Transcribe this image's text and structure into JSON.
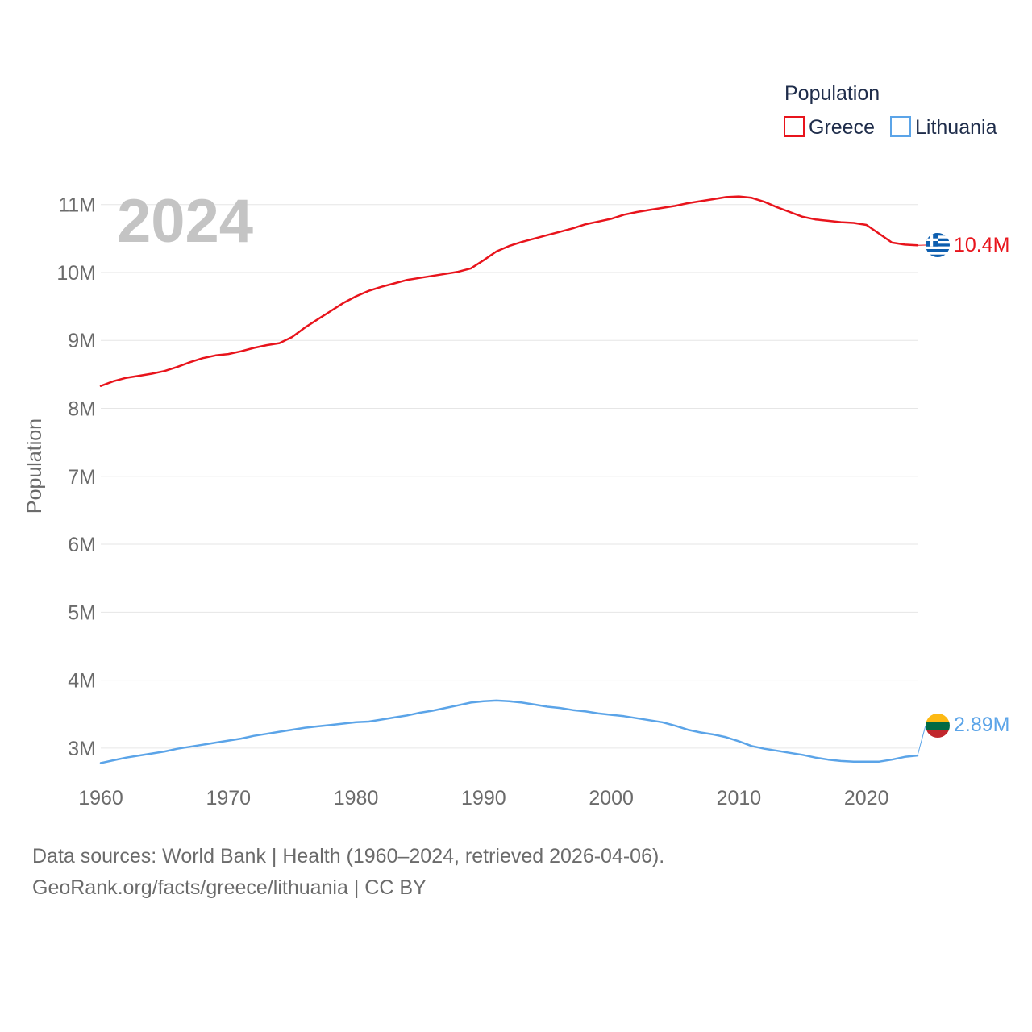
{
  "chart_data": {
    "type": "line",
    "year_label": "2024",
    "ylabel": "Population",
    "xlabel": "",
    "xlim": [
      1960,
      2024
    ],
    "ylim": [
      2500000,
      11400000
    ],
    "y_ticks": [
      3000000,
      4000000,
      5000000,
      6000000,
      7000000,
      8000000,
      9000000,
      10000000,
      11000000
    ],
    "y_tick_labels": [
      "3M",
      "4M",
      "5M",
      "6M",
      "7M",
      "8M",
      "9M",
      "10M",
      "11M"
    ],
    "x_ticks": [
      1960,
      1970,
      1980,
      1990,
      2000,
      2010,
      2020
    ],
    "x_tick_labels": [
      "1960",
      "1970",
      "1980",
      "1990",
      "2000",
      "2010",
      "2020"
    ],
    "legend": {
      "title": "Population",
      "position": "top-right"
    },
    "x": [
      1960,
      1961,
      1962,
      1963,
      1964,
      1965,
      1966,
      1967,
      1968,
      1969,
      1970,
      1971,
      1972,
      1973,
      1974,
      1975,
      1976,
      1977,
      1978,
      1979,
      1980,
      1981,
      1982,
      1983,
      1984,
      1985,
      1986,
      1987,
      1988,
      1989,
      1990,
      1991,
      1992,
      1993,
      1994,
      1995,
      1996,
      1997,
      1998,
      1999,
      2000,
      2001,
      2002,
      2003,
      2004,
      2005,
      2006,
      2007,
      2008,
      2009,
      2010,
      2011,
      2012,
      2013,
      2014,
      2015,
      2016,
      2017,
      2018,
      2019,
      2020,
      2021,
      2022,
      2023,
      2024
    ],
    "series": [
      {
        "name": "Greece",
        "color": "#e8141c",
        "flag": "greece-flag-icon",
        "end_label": "10.4M",
        "values": [
          8330000,
          8400000,
          8450000,
          8480000,
          8510000,
          8550000,
          8610000,
          8680000,
          8740000,
          8780000,
          8800000,
          8840000,
          8890000,
          8930000,
          8960000,
          9050000,
          9190000,
          9310000,
          9430000,
          9550000,
          9650000,
          9730000,
          9790000,
          9840000,
          9890000,
          9920000,
          9950000,
          9980000,
          10010000,
          10060000,
          10180000,
          10310000,
          10390000,
          10450000,
          10500000,
          10550000,
          10600000,
          10650000,
          10710000,
          10750000,
          10790000,
          10850000,
          10890000,
          10920000,
          10950000,
          10980000,
          11020000,
          11050000,
          11080000,
          11110000,
          11120000,
          11100000,
          11040000,
          10960000,
          10890000,
          10820000,
          10780000,
          10760000,
          10740000,
          10730000,
          10700000,
          10570000,
          10440000,
          10410000,
          10400000
        ]
      },
      {
        "name": "Lithuania",
        "color": "#5ba4e8",
        "flag": "lithuania-flag-icon",
        "end_label": "2.89M",
        "values": [
          2780000,
          2820000,
          2860000,
          2890000,
          2920000,
          2950000,
          2990000,
          3020000,
          3050000,
          3080000,
          3110000,
          3140000,
          3180000,
          3210000,
          3240000,
          3270000,
          3300000,
          3320000,
          3340000,
          3360000,
          3380000,
          3390000,
          3420000,
          3450000,
          3480000,
          3520000,
          3550000,
          3590000,
          3630000,
          3670000,
          3690000,
          3700000,
          3690000,
          3670000,
          3640000,
          3610000,
          3590000,
          3560000,
          3540000,
          3510000,
          3490000,
          3470000,
          3440000,
          3410000,
          3380000,
          3330000,
          3270000,
          3230000,
          3200000,
          3160000,
          3100000,
          3030000,
          2990000,
          2960000,
          2930000,
          2900000,
          2860000,
          2830000,
          2810000,
          2800000,
          2800000,
          2800000,
          2830000,
          2870000,
          2890000
        ]
      }
    ]
  },
  "footer": {
    "line1": "Data sources: World Bank | Health (1960–2024, retrieved 2026-04-06).",
    "line2": "GeoRank.org/facts/greece/lithuania | CC BY"
  }
}
